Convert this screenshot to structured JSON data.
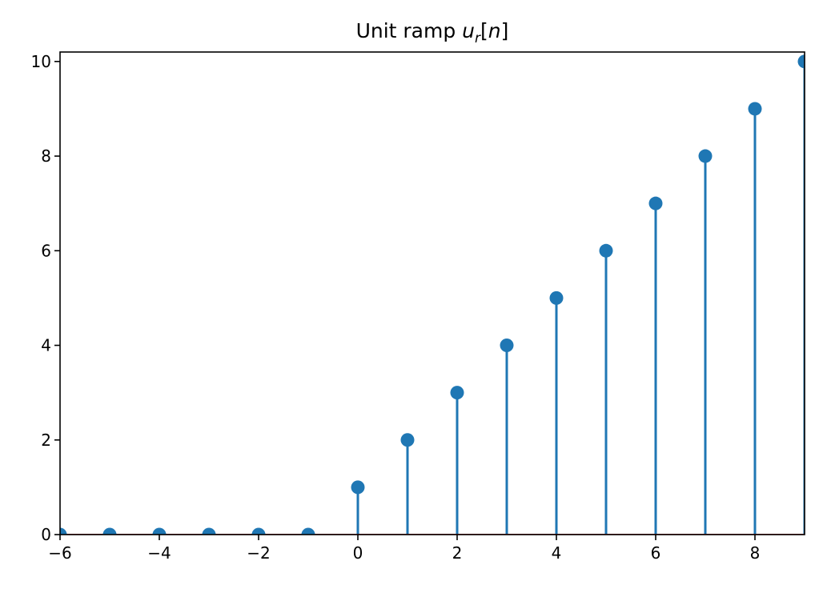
{
  "chart_data": {
    "type": "stem",
    "title_prefix": "Unit ramp ",
    "title_math": "u_r[n]",
    "title_math_parts": {
      "base": "u",
      "sub": "r",
      "bracket_open": "[",
      "var": "n",
      "bracket_close": "]"
    },
    "xlim": [
      -6,
      9
    ],
    "ylim": [
      0,
      10.2
    ],
    "x_ticks": [
      -6,
      -4,
      -2,
      0,
      2,
      4,
      6,
      8
    ],
    "x_tick_labels": [
      "−6",
      "−4",
      "−2",
      "0",
      "2",
      "4",
      "6",
      "8"
    ],
    "y_ticks": [
      0,
      2,
      4,
      6,
      8,
      10
    ],
    "y_tick_labels": [
      "0",
      "2",
      "4",
      "6",
      "8",
      "10"
    ],
    "series": [
      {
        "x": [
          -6,
          -5,
          -4,
          -3,
          -2,
          -1,
          0,
          1,
          2,
          3,
          4,
          5,
          6,
          7,
          8,
          9
        ],
        "values": [
          0,
          0,
          0,
          0,
          0,
          0,
          1,
          2,
          3,
          4,
          5,
          6,
          7,
          8,
          9,
          10
        ]
      }
    ],
    "colors": {
      "stem": "#1f77b4",
      "marker": "#1f77b4",
      "baseline": "#d62728",
      "axes": "#000000"
    },
    "grid": false
  }
}
